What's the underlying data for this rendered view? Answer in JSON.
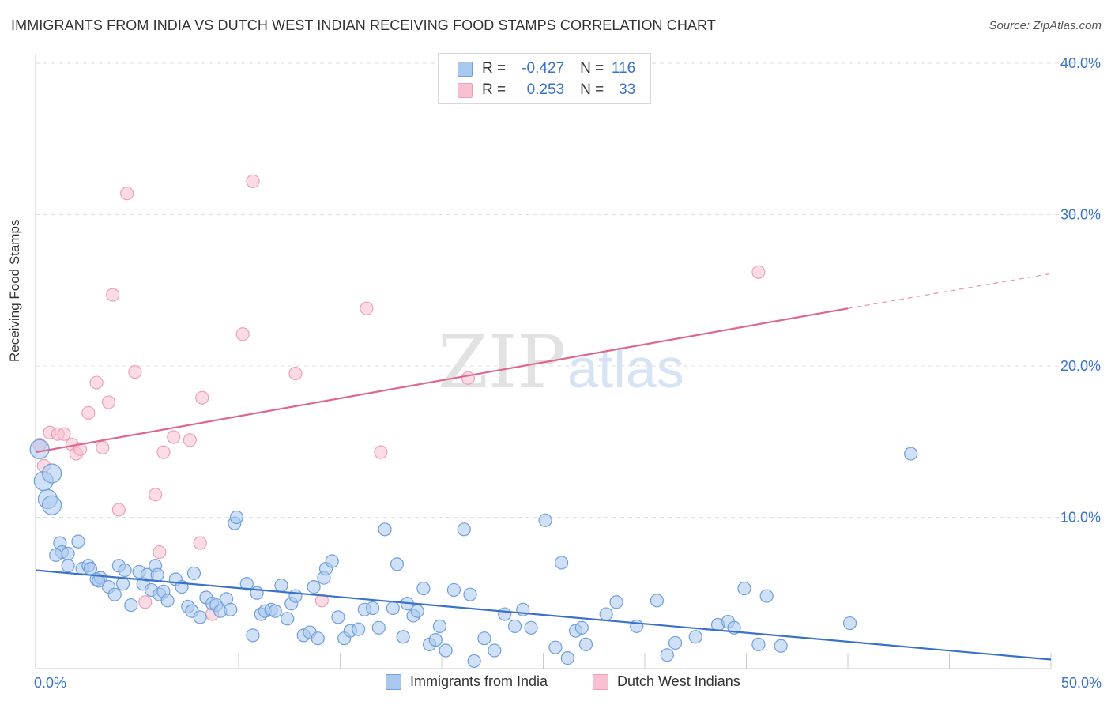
{
  "header": {
    "title": "IMMIGRANTS FROM INDIA VS DUTCH WEST INDIAN RECEIVING FOOD STAMPS CORRELATION CHART",
    "source": "Source: ZipAtlas.com"
  },
  "legend_top": {
    "rows": [
      {
        "r_label": "R =",
        "r_value": "-0.427",
        "n_label": "N =",
        "n_value": "116"
      },
      {
        "r_label": "R =",
        "r_value": "0.253",
        "n_label": "N =",
        "n_value": "33"
      }
    ]
  },
  "colors": {
    "india_fill": "#a9c8f0",
    "india_stroke": "#6f9fdc",
    "india_line": "#3a72c8",
    "dutch_fill": "#f8c0d0",
    "dutch_stroke": "#eea0b8",
    "dutch_line": "#e0668e",
    "axis_text": "#3a72c8",
    "grid": "#dddddd"
  },
  "watermark": {
    "zip": "ZIP",
    "atlas": "atlas"
  },
  "chart_data": {
    "type": "scatter",
    "ylabel": "Receiving Food Stamps",
    "xlim": [
      0,
      50
    ],
    "ylim": [
      0,
      40
    ],
    "x_tick_labels": [
      "0.0%",
      "50.0%"
    ],
    "y_ticks": [
      10,
      20,
      30,
      40
    ],
    "y_tick_labels": [
      "10.0%",
      "20.0%",
      "30.0%",
      "40.0%"
    ],
    "grid": true,
    "legend_position": "bottom",
    "series": [
      {
        "name": "Immigrants from India",
        "R": -0.427,
        "N": 116,
        "trend": {
          "x0": 0,
          "y0": 6.5,
          "x1": 50,
          "y1": 0.6
        },
        "points": [
          [
            0.2,
            14.5
          ],
          [
            0.4,
            12.4
          ],
          [
            0.8,
            12.9
          ],
          [
            0.6,
            11.2
          ],
          [
            0.8,
            10.8
          ],
          [
            1.2,
            8.3
          ],
          [
            1.3,
            7.7
          ],
          [
            1.0,
            7.5
          ],
          [
            1.6,
            7.6
          ],
          [
            2.1,
            8.4
          ],
          [
            2.3,
            6.6
          ],
          [
            2.6,
            6.8
          ],
          [
            2.7,
            6.6
          ],
          [
            3.0,
            5.9
          ],
          [
            3.2,
            6.0
          ],
          [
            3.6,
            5.4
          ],
          [
            3.9,
            4.9
          ],
          [
            4.1,
            6.8
          ],
          [
            4.3,
            5.6
          ],
          [
            4.4,
            6.5
          ],
          [
            4.7,
            4.2
          ],
          [
            5.1,
            6.4
          ],
          [
            5.3,
            5.6
          ],
          [
            5.5,
            6.2
          ],
          [
            5.7,
            5.2
          ],
          [
            5.9,
            6.8
          ],
          [
            6.1,
            4.9
          ],
          [
            6.3,
            5.1
          ],
          [
            6.5,
            4.5
          ],
          [
            6.9,
            5.9
          ],
          [
            7.2,
            5.4
          ],
          [
            7.5,
            4.1
          ],
          [
            7.7,
            3.8
          ],
          [
            7.8,
            6.3
          ],
          [
            8.1,
            3.4
          ],
          [
            8.4,
            4.7
          ],
          [
            8.7,
            4.3
          ],
          [
            8.9,
            4.2
          ],
          [
            9.1,
            3.8
          ],
          [
            9.4,
            4.6
          ],
          [
            9.6,
            3.9
          ],
          [
            9.8,
            9.6
          ],
          [
            9.9,
            10.0
          ],
          [
            10.4,
            5.6
          ],
          [
            10.7,
            2.2
          ],
          [
            10.9,
            5.0
          ],
          [
            11.1,
            3.6
          ],
          [
            11.3,
            3.8
          ],
          [
            11.6,
            3.9
          ],
          [
            11.8,
            3.8
          ],
          [
            12.1,
            5.5
          ],
          [
            12.4,
            3.3
          ],
          [
            12.6,
            4.3
          ],
          [
            12.8,
            4.8
          ],
          [
            13.2,
            2.2
          ],
          [
            13.5,
            2.4
          ],
          [
            13.7,
            5.4
          ],
          [
            13.9,
            2.0
          ],
          [
            14.2,
            6.0
          ],
          [
            14.3,
            6.6
          ],
          [
            14.6,
            7.1
          ],
          [
            14.9,
            3.4
          ],
          [
            15.2,
            2.0
          ],
          [
            15.5,
            2.5
          ],
          [
            15.9,
            2.6
          ],
          [
            16.2,
            3.9
          ],
          [
            16.6,
            4.0
          ],
          [
            16.9,
            2.7
          ],
          [
            17.2,
            9.2
          ],
          [
            17.6,
            4.0
          ],
          [
            17.8,
            6.9
          ],
          [
            18.1,
            2.1
          ],
          [
            18.3,
            4.3
          ],
          [
            18.6,
            3.5
          ],
          [
            18.8,
            3.8
          ],
          [
            19.1,
            5.3
          ],
          [
            19.4,
            1.6
          ],
          [
            19.7,
            1.9
          ],
          [
            19.9,
            2.8
          ],
          [
            20.2,
            1.2
          ],
          [
            20.6,
            5.2
          ],
          [
            21.1,
            9.2
          ],
          [
            21.4,
            4.9
          ],
          [
            21.6,
            0.5
          ],
          [
            22.1,
            2.0
          ],
          [
            22.6,
            1.2
          ],
          [
            23.1,
            3.6
          ],
          [
            23.6,
            2.8
          ],
          [
            24.0,
            3.9
          ],
          [
            24.4,
            2.7
          ],
          [
            25.1,
            9.8
          ],
          [
            25.6,
            1.4
          ],
          [
            25.9,
            7.0
          ],
          [
            26.2,
            0.7
          ],
          [
            26.6,
            2.5
          ],
          [
            26.9,
            2.7
          ],
          [
            27.1,
            1.6
          ],
          [
            28.1,
            3.6
          ],
          [
            28.6,
            4.4
          ],
          [
            29.6,
            2.8
          ],
          [
            30.6,
            4.5
          ],
          [
            31.1,
            0.9
          ],
          [
            31.5,
            1.7
          ],
          [
            32.5,
            2.1
          ],
          [
            33.6,
            2.9
          ],
          [
            34.1,
            3.1
          ],
          [
            34.4,
            2.7
          ],
          [
            34.9,
            5.3
          ],
          [
            35.6,
            1.6
          ],
          [
            36.0,
            4.8
          ],
          [
            36.7,
            1.5
          ],
          [
            40.1,
            3.0
          ],
          [
            43.1,
            14.2
          ],
          [
            1.6,
            6.8
          ],
          [
            3.1,
            5.8
          ],
          [
            6.0,
            6.2
          ]
        ]
      },
      {
        "name": "Dutch West Indians",
        "R": 0.253,
        "N": 33,
        "trend": {
          "x0": 0,
          "y0": 14.3,
          "x1": 40,
          "y1": 23.8,
          "x_dash_end": 50,
          "y_dash_end": 26.1
        },
        "points": [
          [
            0.2,
            14.8
          ],
          [
            0.4,
            13.4
          ],
          [
            0.7,
            15.6
          ],
          [
            1.1,
            15.5
          ],
          [
            1.4,
            15.5
          ],
          [
            1.8,
            14.8
          ],
          [
            2.0,
            14.2
          ],
          [
            2.2,
            14.5
          ],
          [
            2.6,
            16.9
          ],
          [
            3.0,
            18.9
          ],
          [
            3.3,
            14.6
          ],
          [
            3.6,
            17.6
          ],
          [
            3.8,
            24.7
          ],
          [
            4.1,
            10.5
          ],
          [
            4.5,
            31.4
          ],
          [
            4.9,
            19.6
          ],
          [
            5.4,
            4.4
          ],
          [
            5.9,
            11.5
          ],
          [
            6.1,
            7.7
          ],
          [
            6.3,
            14.3
          ],
          [
            6.8,
            15.3
          ],
          [
            7.6,
            15.1
          ],
          [
            8.1,
            8.3
          ],
          [
            8.2,
            17.9
          ],
          [
            8.7,
            3.6
          ],
          [
            10.2,
            22.1
          ],
          [
            10.7,
            32.2
          ],
          [
            12.8,
            19.5
          ],
          [
            14.1,
            4.5
          ],
          [
            16.3,
            23.8
          ],
          [
            17.0,
            14.3
          ],
          [
            21.3,
            19.2
          ],
          [
            35.6,
            26.2
          ]
        ]
      }
    ]
  },
  "bottom_legend": {
    "items": [
      {
        "label": "Immigrants from India"
      },
      {
        "label": "Dutch West Indians"
      }
    ]
  }
}
